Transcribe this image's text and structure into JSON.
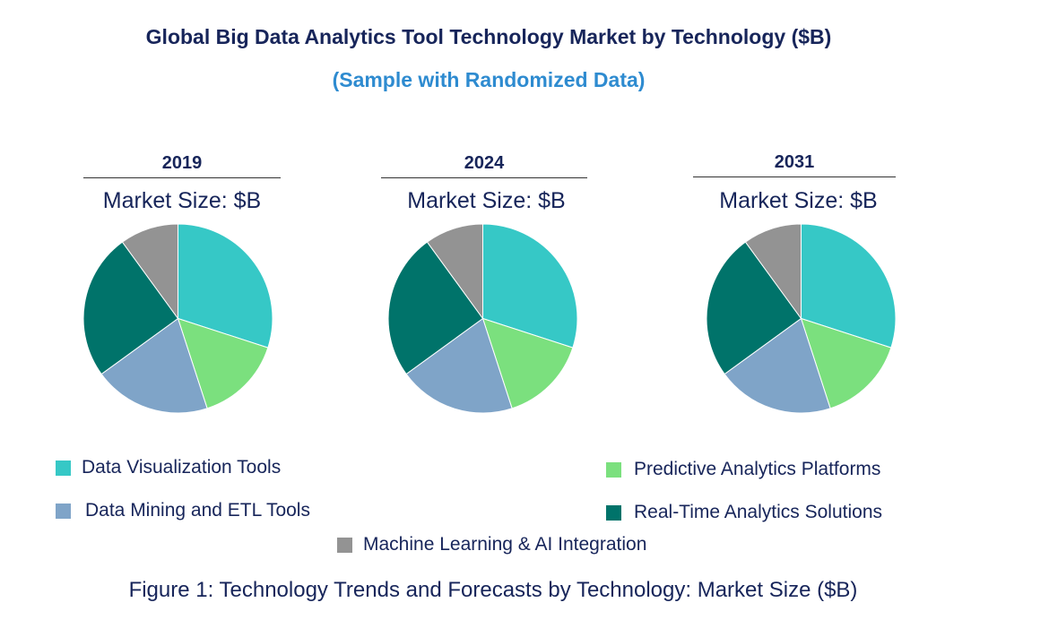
{
  "title": "Global Big Data Analytics Tool Technology Market by Technology ($B)",
  "subtitle": "(Sample with Randomized Data)",
  "caption": "Figure 1: Technology Trends and Forecasts by Technology: Market Size ($B)",
  "colors": {
    "Data Visualization Tools": "#36c8c6",
    "Predictive Analytics Platforms": "#7be07e",
    "Data Mining and ETL Tools": "#7fa4c8",
    "Real-Time Analytics Solutions": "#00736a",
    "Machine Learning & AI Integration": "#939393"
  },
  "legend": [
    "Data Visualization Tools",
    "Data Mining and ETL Tools",
    "Machine Learning & AI Integration",
    "Predictive Analytics Platforms",
    "Real-Time Analytics Solutions"
  ],
  "chart_data": [
    {
      "type": "pie",
      "title": "2019",
      "subtitle": "Market Size: $B",
      "categories": [
        "Data Visualization Tools",
        "Predictive Analytics Platforms",
        "Data Mining and ETL Tools",
        "Real-Time Analytics Solutions",
        "Machine Learning & AI Integration"
      ],
      "values": [
        30,
        15,
        20,
        25,
        10
      ]
    },
    {
      "type": "pie",
      "title": "2024",
      "subtitle": "Market Size: $B",
      "categories": [
        "Data Visualization Tools",
        "Predictive Analytics Platforms",
        "Data Mining and ETL Tools",
        "Real-Time Analytics Solutions",
        "Machine Learning & AI Integration"
      ],
      "values": [
        30,
        15,
        20,
        25,
        10
      ]
    },
    {
      "type": "pie",
      "title": "2031",
      "subtitle": "Market Size: $B",
      "categories": [
        "Data Visualization Tools",
        "Predictive Analytics Platforms",
        "Data Mining and ETL Tools",
        "Real-Time Analytics Solutions",
        "Machine Learning & AI Integration"
      ],
      "values": [
        30,
        15,
        20,
        25,
        10
      ]
    }
  ]
}
